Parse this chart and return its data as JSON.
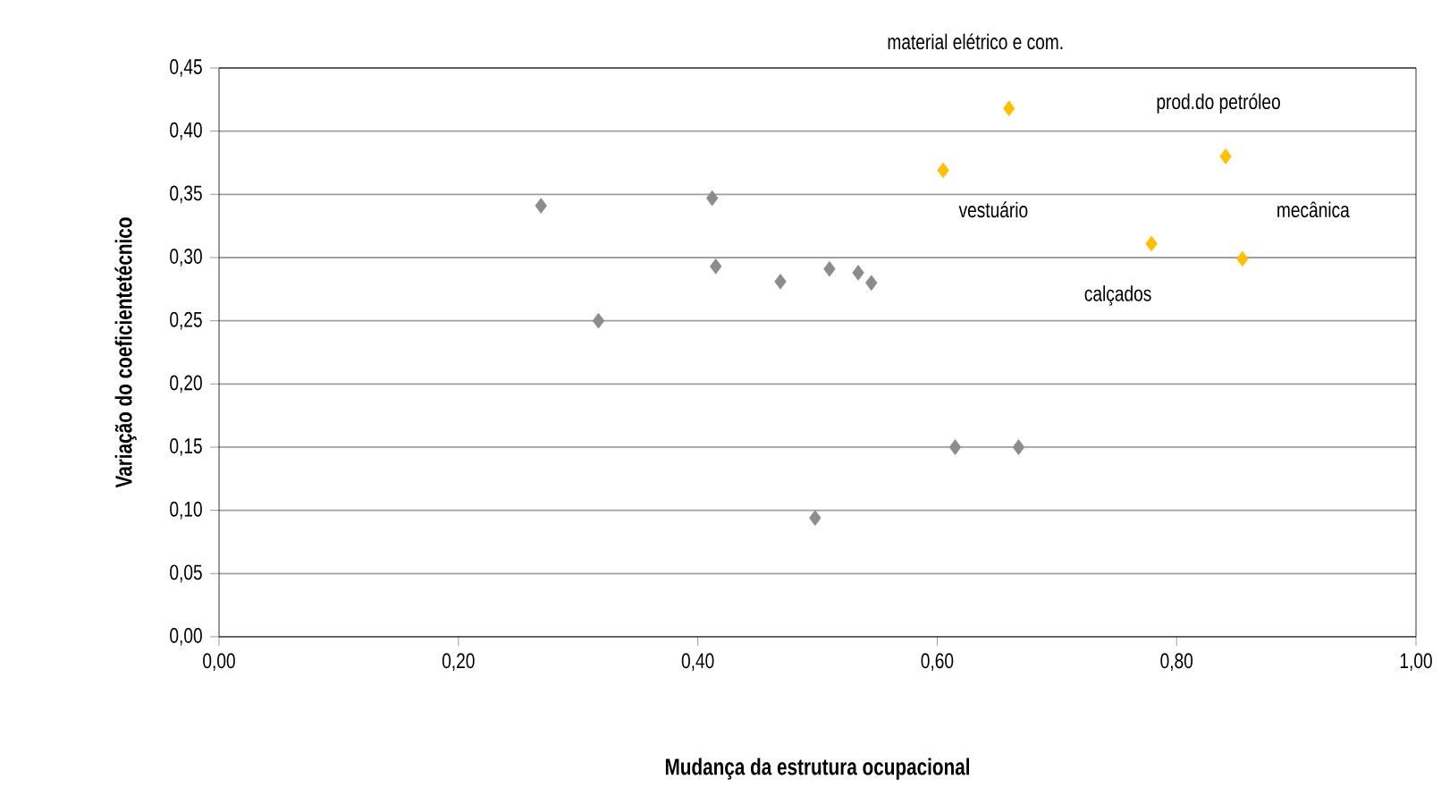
{
  "chart_data": {
    "type": "scatter",
    "xlabel": "Mudança da estrutura ocupacional",
    "ylabel": "Variação do coeficientetécnico",
    "series": [
      {
        "color": "#8c8c8c",
        "x": [
          0.269,
          0.317,
          0.412,
          0.415,
          0.469,
          0.498,
          0.51,
          0.534,
          0.545,
          0.615,
          0.668
        ],
        "values": [
          0.341,
          0.25,
          0.347,
          0.293,
          0.281,
          0.094,
          0.291,
          0.288,
          0.28,
          0.15,
          0.15
        ]
      },
      {
        "color": "#ffc000",
        "x": [
          0.605,
          0.66,
          0.841,
          0.779,
          0.855
        ],
        "values": [
          0.369,
          0.418,
          0.38,
          0.311,
          0.299
        ]
      }
    ],
    "annotations": [
      {
        "text": "material elétrico e com.",
        "x": 0.66,
        "y": 0.418
      },
      {
        "text": "prod.do petróleo",
        "x": 0.841,
        "y": 0.38
      },
      {
        "text": "vestuário",
        "x": 0.605,
        "y": 0.369
      },
      {
        "text": "mecânica",
        "x": 0.855,
        "y": 0.299
      },
      {
        "text": "calçados",
        "x": 0.779,
        "y": 0.311
      }
    ],
    "xlim": [
      0,
      1
    ],
    "ylim": [
      0,
      0.45
    ],
    "xticks": [
      {
        "value": 0,
        "label": "0,00"
      },
      {
        "value": 0.2,
        "label": "0,20"
      },
      {
        "value": 0.4,
        "label": "0,40"
      },
      {
        "value": 0.6,
        "label": "0,60"
      },
      {
        "value": 0.8,
        "label": "0,80"
      },
      {
        "value": 1,
        "label": "1,00"
      }
    ],
    "yticks": [
      {
        "value": 0,
        "label": "0,00"
      },
      {
        "value": 0.05,
        "label": "0,05"
      },
      {
        "value": 0.1,
        "label": "0,10"
      },
      {
        "value": 0.15,
        "label": "0,15"
      },
      {
        "value": 0.2,
        "label": "0,20"
      },
      {
        "value": 0.25,
        "label": "0,25"
      },
      {
        "value": 0.3,
        "label": "0,30"
      },
      {
        "value": 0.35,
        "label": "0,35"
      },
      {
        "value": 0.4,
        "label": "0,40"
      },
      {
        "value": 0.45,
        "label": "0,45"
      }
    ],
    "grid": "y",
    "marker": "diamond"
  }
}
